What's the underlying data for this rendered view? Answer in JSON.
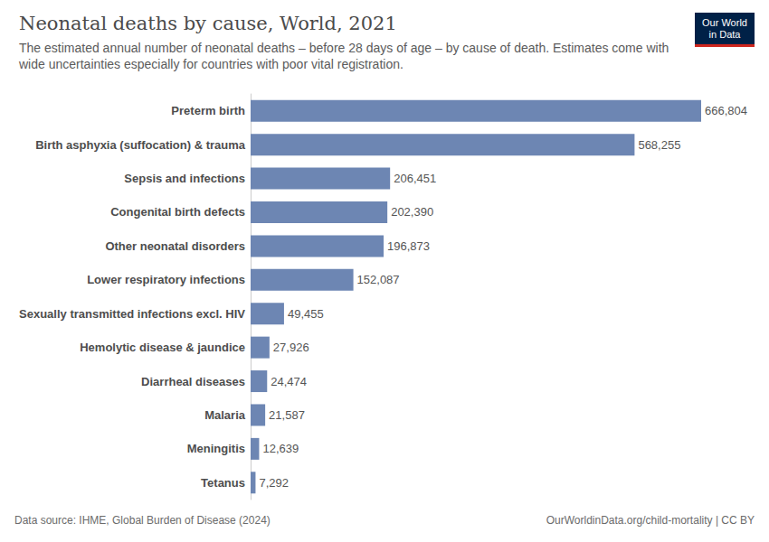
{
  "chart_data": {
    "type": "bar",
    "orientation": "horizontal",
    "title": "Neonatal deaths by cause, World, 2021",
    "subtitle": "The estimated annual number of neonatal deaths – before 28 days of age – by cause of death. Estimates come with wide uncertainties especially for countries with poor vital registration.",
    "categories": [
      "Preterm birth",
      "Birth asphyxia (suffocation) & trauma",
      "Sepsis and infections",
      "Congenital birth defects",
      "Other neonatal disorders",
      "Lower respiratory infections",
      "Sexually transmitted infections excl. HIV",
      "Hemolytic disease & jaundice",
      "Diarrheal diseases",
      "Malaria",
      "Meningitis",
      "Tetanus"
    ],
    "values": [
      666804,
      568255,
      206451,
      202390,
      196873,
      152087,
      49455,
      27926,
      24474,
      21587,
      12639,
      7292
    ],
    "value_labels": [
      "666,804",
      "568,255",
      "206,451",
      "202,390",
      "196,873",
      "152,087",
      "49,455",
      "27,926",
      "24,474",
      "21,587",
      "12,639",
      "7,292"
    ],
    "color": "#6d86b3",
    "xlim": [
      0,
      666804
    ],
    "data_labels": true,
    "tick_labels": "y",
    "grid": false,
    "source": "Data source: IHME, Global Burden of Disease (2024)",
    "footer": "OurWorldinData.org/child-mortality | CC BY",
    "logo": "Our World\nin Data"
  }
}
